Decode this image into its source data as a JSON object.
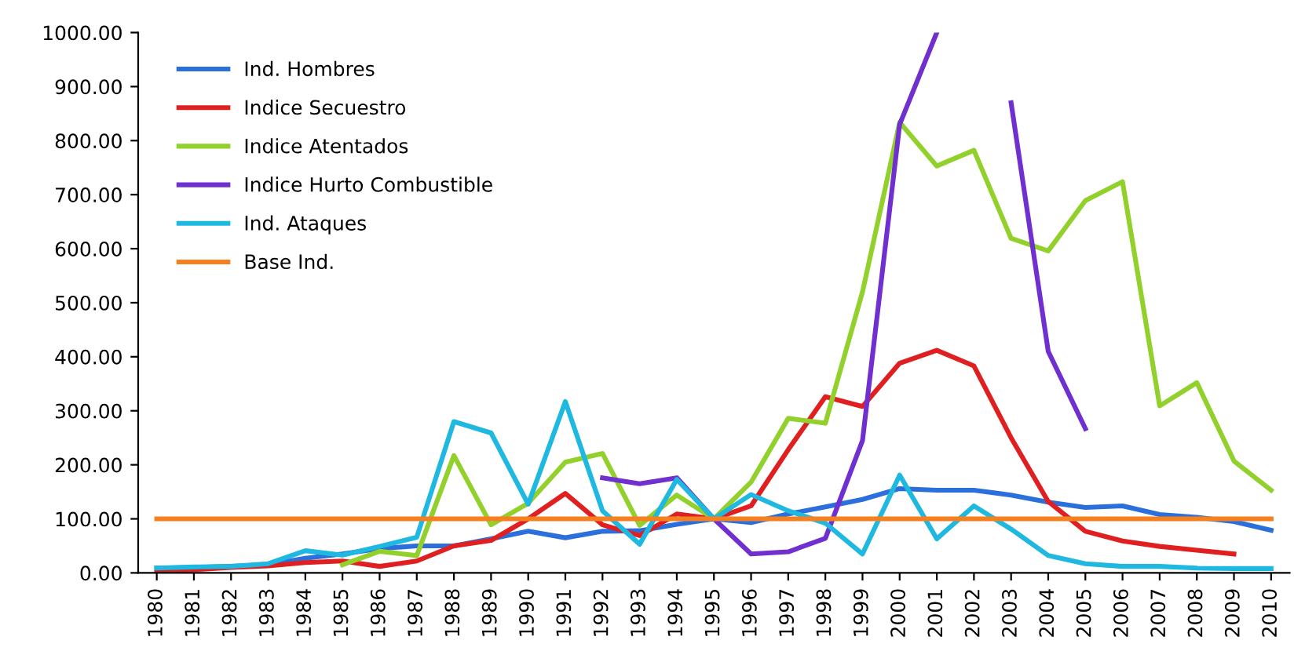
{
  "chart_data": {
    "type": "line",
    "categories": [
      "1980",
      "1981",
      "1982",
      "1983",
      "1984",
      "1985",
      "1986",
      "1987",
      "1988",
      "1989",
      "1990",
      "1991",
      "1992",
      "1993",
      "1994",
      "1995",
      "1996",
      "1997",
      "1998",
      "1999",
      "2000",
      "2001",
      "2002",
      "2003",
      "2004",
      "2005",
      "2006",
      "2007",
      "2008",
      "2009",
      "2010"
    ],
    "series": [
      {
        "name": "Ind. Hombres",
        "color": "#2a6fdb",
        "values": [
          9,
          10,
          12,
          15,
          27,
          35,
          45,
          50,
          50,
          63,
          77,
          65,
          77,
          78,
          90,
          100,
          93,
          109,
          122,
          136,
          156,
          153,
          153,
          144,
          131,
          121,
          124,
          108,
          103,
          95,
          79
        ]
      },
      {
        "name": "Indice Secuestro",
        "color": "#e02020",
        "values": [
          1,
          6,
          10,
          13,
          19,
          22,
          12,
          22,
          50,
          60,
          100,
          147,
          89,
          69,
          109,
          100,
          124,
          228,
          326,
          308,
          388,
          412,
          383,
          250,
          132,
          77,
          59,
          49,
          42,
          35,
          null
        ]
      },
      {
        "name": "Indice Atentados",
        "color": "#92d02c",
        "values": [
          null,
          null,
          null,
          null,
          null,
          15,
          40,
          32,
          217,
          89,
          129,
          205,
          221,
          88,
          144,
          100,
          168,
          286,
          277,
          520,
          834,
          753,
          782,
          619,
          596,
          689,
          724,
          309,
          352,
          207,
          153
        ]
      },
      {
        "name": "Indice Hurto Combustible",
        "color": "#7030d0",
        "values": [
          null,
          null,
          null,
          null,
          null,
          null,
          null,
          null,
          null,
          null,
          null,
          null,
          176,
          165,
          176,
          100,
          35,
          39,
          64,
          245,
          830,
          1000,
          null,
          870,
          410,
          267,
          null,
          null,
          null,
          null,
          null
        ]
      },
      {
        "name": "Ind. Ataques",
        "color": "#1fb8e0",
        "values": [
          9,
          11,
          12,
          17,
          41,
          33,
          49,
          66,
          280,
          259,
          127,
          317,
          115,
          53,
          173,
          100,
          145,
          115,
          92,
          35,
          181,
          63,
          124,
          81,
          32,
          17,
          12,
          12,
          9,
          8,
          8
        ]
      },
      {
        "name": "Base Ind.",
        "color": "#f58020",
        "values": [
          100,
          100,
          100,
          100,
          100,
          100,
          100,
          100,
          100,
          100,
          100,
          100,
          100,
          100,
          100,
          100,
          100,
          100,
          100,
          100,
          100,
          100,
          100,
          100,
          100,
          100,
          100,
          100,
          100,
          100,
          100
        ]
      }
    ],
    "ylim": [
      0,
      1000
    ],
    "yticks": [
      {
        "value": 0,
        "label": "0.00"
      },
      {
        "value": 100,
        "label": "100.00"
      },
      {
        "value": 200,
        "label": "200.00"
      },
      {
        "value": 300,
        "label": "300.00"
      },
      {
        "value": 400,
        "label": "400.00"
      },
      {
        "value": 500,
        "label": "500.00"
      },
      {
        "value": 600,
        "label": "600.00"
      },
      {
        "value": 700,
        "label": "700.00"
      },
      {
        "value": 800,
        "label": "800.00"
      },
      {
        "value": 900,
        "label": "900.00"
      },
      {
        "value": 1000,
        "label": "1000.00"
      }
    ],
    "grid": false,
    "legend": "top left",
    "marker": "none",
    "line_style": "solid"
  }
}
